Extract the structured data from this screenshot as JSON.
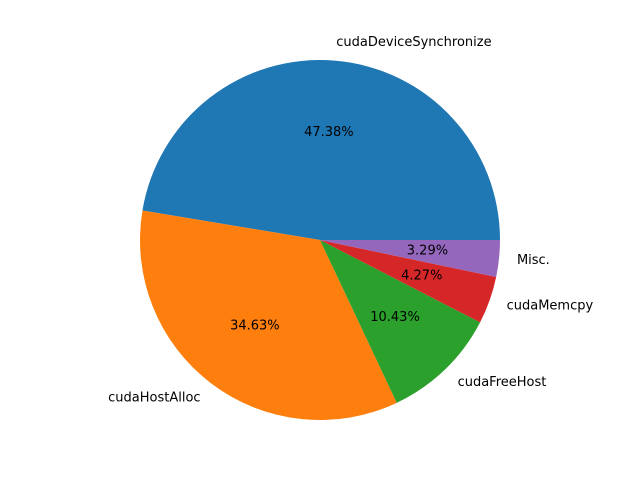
{
  "chart_data": {
    "type": "pie",
    "title": "",
    "start_angle_deg": 0,
    "direction": "counterclockwise",
    "legend": "none",
    "slices": [
      {
        "label": "cudaDeviceSynchronize",
        "value": 47.38,
        "pct_label": "47.38%",
        "color": "#1f77b4"
      },
      {
        "label": "cudaHostAlloc",
        "value": 34.63,
        "pct_label": "34.63%",
        "color": "#ff7f0e"
      },
      {
        "label": "cudaFreeHost",
        "value": 10.43,
        "pct_label": "10.43%",
        "color": "#2ca02c"
      },
      {
        "label": "cudaMemcpy",
        "value": 4.27,
        "pct_label": "4.27%",
        "color": "#d62728"
      },
      {
        "label": "Misc.",
        "value": 3.29,
        "pct_label": "3.29%",
        "color": "#9467bd"
      }
    ]
  }
}
